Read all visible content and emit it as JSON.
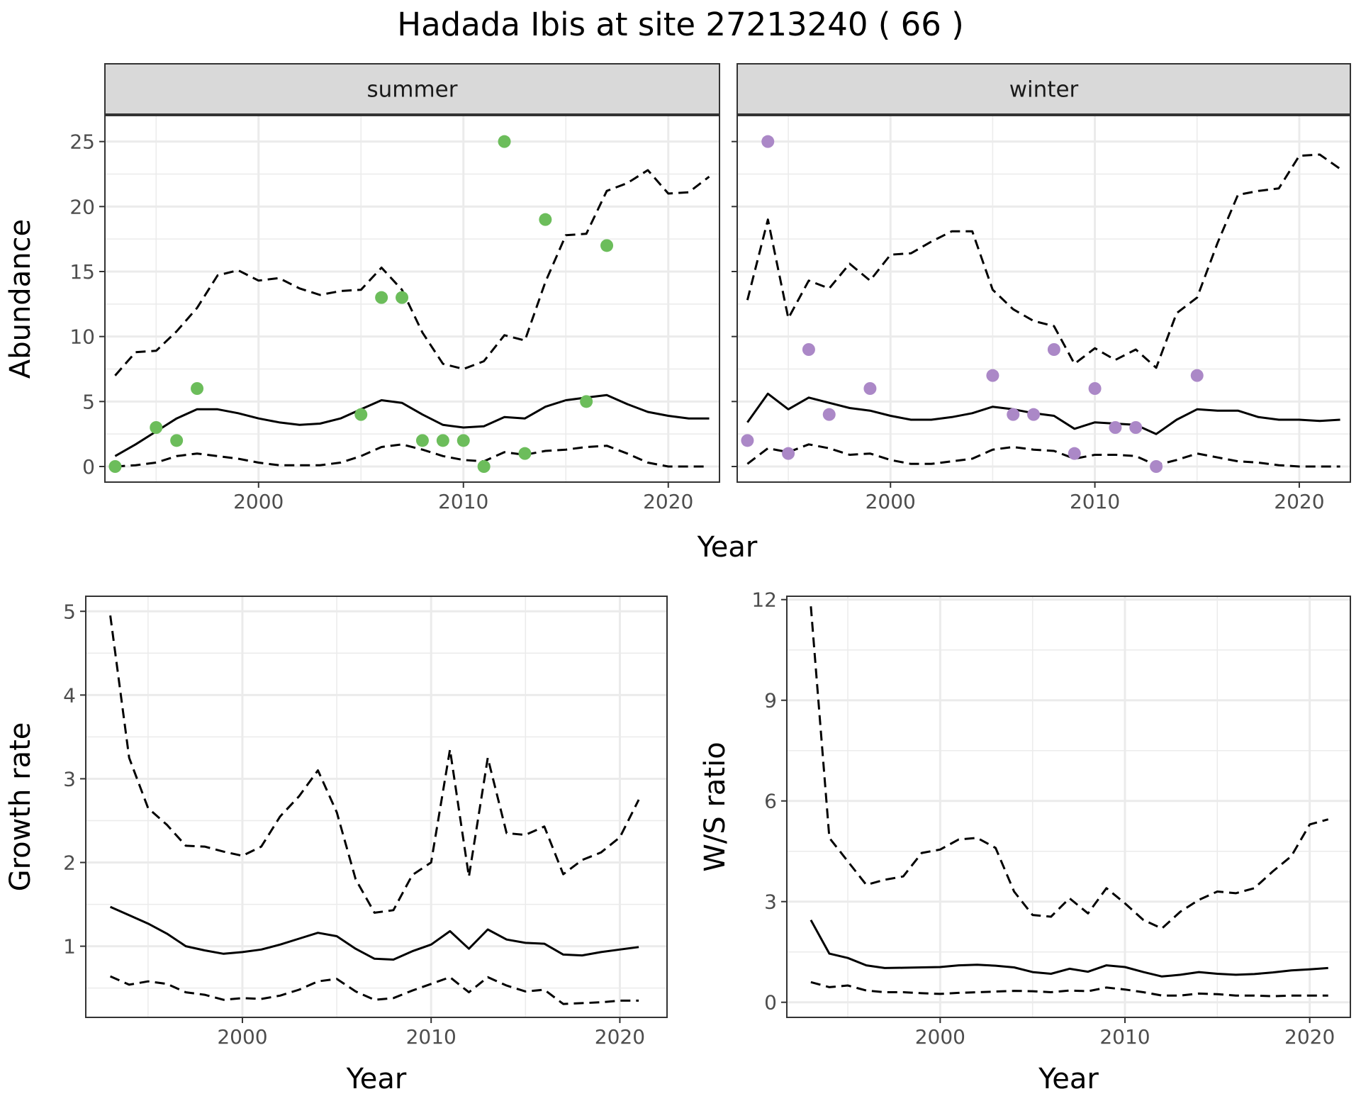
{
  "title": "Hadada Ibis at site 27213240 ( 66 )",
  "colors": {
    "summer_points": "#6cbd5b",
    "winter_points": "#ab88c7",
    "grid": "#ebebeb",
    "strip_fill": "#d9d9d9",
    "lines": "#000000"
  },
  "chart_data": [
    {
      "type": "line",
      "facet": "summer",
      "xlabel": "Year",
      "ylabel": "Abundance",
      "xlim": [
        1992.5,
        2022.5
      ],
      "ylim": [
        -1.2,
        27
      ],
      "xticks": [
        2000,
        2010,
        2020
      ],
      "yticks": [
        0,
        5,
        10,
        15,
        20,
        25
      ],
      "points": [
        [
          1993,
          0
        ],
        [
          1995,
          3
        ],
        [
          1996,
          2
        ],
        [
          1997,
          6
        ],
        [
          2005,
          4
        ],
        [
          2006,
          13
        ],
        [
          2007,
          13
        ],
        [
          2008,
          2
        ],
        [
          2009,
          2
        ],
        [
          2010,
          2
        ],
        [
          2011,
          0
        ],
        [
          2012,
          25
        ],
        [
          2013,
          1
        ],
        [
          2014,
          19
        ],
        [
          2016,
          5
        ],
        [
          2017,
          17
        ]
      ],
      "series": [
        {
          "style": "solid",
          "x": [
            1993,
            1994,
            1995,
            1996,
            1997,
            1998,
            1999,
            2000,
            2001,
            2002,
            2003,
            2004,
            2005,
            2006,
            2007,
            2008,
            2009,
            2010,
            2011,
            2012,
            2013,
            2014,
            2015,
            2016,
            2017,
            2018,
            2019,
            2020,
            2021,
            2022
          ],
          "values": [
            0.8,
            1.7,
            2.7,
            3.7,
            4.4,
            4.4,
            4.1,
            3.7,
            3.4,
            3.2,
            3.3,
            3.7,
            4.4,
            5.1,
            4.9,
            4.0,
            3.2,
            3.0,
            3.1,
            3.8,
            3.7,
            4.6,
            5.1,
            5.3,
            5.5,
            4.8,
            4.2,
            3.9,
            3.7,
            3.7
          ]
        },
        {
          "style": "dashed",
          "x": [
            1993,
            1994,
            1995,
            1996,
            1997,
            1998,
            1999,
            2000,
            2001,
            2002,
            2003,
            2004,
            2005,
            2006,
            2007,
            2008,
            2009,
            2010,
            2011,
            2012,
            2013,
            2014,
            2015,
            2016,
            2017,
            2018,
            2019,
            2020,
            2021,
            2022
          ],
          "values": [
            7.0,
            8.8,
            8.9,
            10.4,
            12.2,
            14.7,
            15.1,
            14.3,
            14.5,
            13.7,
            13.2,
            13.5,
            13.6,
            15.3,
            13.6,
            10.3,
            7.9,
            7.5,
            8.1,
            10.1,
            9.7,
            14.2,
            17.8,
            17.9,
            21.2,
            21.8,
            22.8,
            21.0,
            21.1,
            22.3
          ]
        },
        {
          "style": "dashed",
          "x": [
            1993,
            1994,
            1995,
            1996,
            1997,
            1998,
            1999,
            2000,
            2001,
            2002,
            2003,
            2004,
            2005,
            2006,
            2007,
            2008,
            2009,
            2010,
            2011,
            2012,
            2013,
            2014,
            2015,
            2016,
            2017,
            2018,
            2019,
            2020,
            2021,
            2022
          ],
          "values": [
            0.0,
            0.1,
            0.3,
            0.8,
            1.0,
            0.8,
            0.6,
            0.3,
            0.1,
            0.1,
            0.1,
            0.3,
            0.8,
            1.5,
            1.7,
            1.3,
            0.8,
            0.5,
            0.4,
            1.1,
            0.9,
            1.2,
            1.3,
            1.5,
            1.6,
            1.0,
            0.3,
            0.0,
            0.0,
            0.0
          ]
        }
      ]
    },
    {
      "type": "line",
      "facet": "winter",
      "xlabel": "Year",
      "ylabel": "Abundance",
      "xlim": [
        1992.5,
        2022.5
      ],
      "ylim": [
        -1.2,
        27
      ],
      "xticks": [
        2000,
        2010,
        2020
      ],
      "yticks": [
        0,
        5,
        10,
        15,
        20,
        25
      ],
      "points": [
        [
          1993,
          2
        ],
        [
          1994,
          25
        ],
        [
          1995,
          1
        ],
        [
          1996,
          9
        ],
        [
          1997,
          4
        ],
        [
          1999,
          6
        ],
        [
          2005,
          7
        ],
        [
          2006,
          4
        ],
        [
          2007,
          4
        ],
        [
          2008,
          9
        ],
        [
          2009,
          1
        ],
        [
          2010,
          6
        ],
        [
          2011,
          3
        ],
        [
          2012,
          3
        ],
        [
          2013,
          0
        ],
        [
          2015,
          7
        ]
      ],
      "series": [
        {
          "style": "solid",
          "x": [
            1993,
            1994,
            1995,
            1996,
            1997,
            1998,
            1999,
            2000,
            2001,
            2002,
            2003,
            2004,
            2005,
            2006,
            2007,
            2008,
            2009,
            2010,
            2011,
            2012,
            2013,
            2014,
            2015,
            2016,
            2017,
            2018,
            2019,
            2020,
            2021,
            2022
          ],
          "values": [
            3.4,
            5.6,
            4.4,
            5.3,
            4.9,
            4.5,
            4.3,
            3.9,
            3.6,
            3.6,
            3.8,
            4.1,
            4.6,
            4.4,
            4.1,
            3.9,
            2.9,
            3.4,
            3.3,
            3.2,
            2.5,
            3.6,
            4.4,
            4.3,
            4.3,
            3.8,
            3.6,
            3.6,
            3.5,
            3.6
          ]
        },
        {
          "style": "dashed",
          "x": [
            1993,
            1994,
            1995,
            1996,
            1997,
            1998,
            1999,
            2000,
            2001,
            2002,
            2003,
            2004,
            2005,
            2006,
            2007,
            2008,
            2009,
            2010,
            2011,
            2012,
            2013,
            2014,
            2015,
            2016,
            2017,
            2018,
            2019,
            2020,
            2021,
            2022
          ],
          "values": [
            12.8,
            19.0,
            11.4,
            14.3,
            13.7,
            15.6,
            14.3,
            16.3,
            16.4,
            17.3,
            18.1,
            18.1,
            13.6,
            12.1,
            11.2,
            10.8,
            7.9,
            9.1,
            8.2,
            9.0,
            7.6,
            11.8,
            13.0,
            17.2,
            20.9,
            21.2,
            21.4,
            23.9,
            24.0,
            22.9
          ]
        },
        {
          "style": "dashed",
          "x": [
            1993,
            1994,
            1995,
            1996,
            1997,
            1998,
            1999,
            2000,
            2001,
            2002,
            2003,
            2004,
            2005,
            2006,
            2007,
            2008,
            2009,
            2010,
            2011,
            2012,
            2013,
            2014,
            2015,
            2016,
            2017,
            2018,
            2019,
            2020,
            2021,
            2022
          ],
          "values": [
            0.2,
            1.4,
            1.1,
            1.7,
            1.4,
            0.9,
            1.0,
            0.5,
            0.2,
            0.2,
            0.4,
            0.6,
            1.3,
            1.5,
            1.3,
            1.2,
            0.6,
            0.9,
            0.9,
            0.8,
            0.1,
            0.5,
            1.0,
            0.7,
            0.4,
            0.3,
            0.1,
            0.0,
            0.0,
            0.0
          ]
        }
      ]
    },
    {
      "type": "line",
      "xlabel": "Year",
      "ylabel": "Growth rate",
      "xlim": [
        1991.7,
        2022.5
      ],
      "ylim": [
        0.15,
        5.18
      ],
      "xticks": [
        2000,
        2010,
        2020
      ],
      "yticks": [
        1,
        2,
        3,
        4,
        5
      ],
      "series": [
        {
          "style": "solid",
          "x": [
            1993,
            1994,
            1995,
            1996,
            1997,
            1998,
            1999,
            2000,
            2001,
            2002,
            2003,
            2004,
            2005,
            2006,
            2007,
            2008,
            2009,
            2010,
            2011,
            2012,
            2013,
            2014,
            2015,
            2016,
            2017,
            2018,
            2019,
            2020,
            2021
          ],
          "values": [
            1.47,
            1.37,
            1.27,
            1.15,
            1.0,
            0.95,
            0.91,
            0.93,
            0.96,
            1.02,
            1.09,
            1.16,
            1.12,
            0.97,
            0.85,
            0.84,
            0.94,
            1.02,
            1.18,
            0.97,
            1.2,
            1.08,
            1.04,
            1.03,
            0.9,
            0.89,
            0.93,
            0.96,
            0.99
          ]
        },
        {
          "style": "dashed",
          "x": [
            1993,
            1994,
            1995,
            1996,
            1997,
            1998,
            1999,
            2000,
            2001,
            2002,
            2003,
            2004,
            2005,
            2006,
            2007,
            2008,
            2009,
            2010,
            2011,
            2012,
            2013,
            2014,
            2015,
            2016,
            2017,
            2018,
            2019,
            2020,
            2021
          ],
          "values": [
            4.95,
            3.25,
            2.65,
            2.45,
            2.2,
            2.19,
            2.13,
            2.08,
            2.19,
            2.55,
            2.79,
            3.1,
            2.6,
            1.8,
            1.4,
            1.43,
            1.85,
            2.0,
            3.35,
            1.83,
            3.25,
            2.35,
            2.33,
            2.43,
            1.86,
            2.03,
            2.12,
            2.3,
            2.75
          ]
        },
        {
          "style": "dashed",
          "x": [
            1993,
            1994,
            1995,
            1996,
            1997,
            1998,
            1999,
            2000,
            2001,
            2002,
            2003,
            2004,
            2005,
            2006,
            2007,
            2008,
            2009,
            2010,
            2011,
            2012,
            2013,
            2014,
            2015,
            2016,
            2017,
            2018,
            2019,
            2020,
            2021
          ],
          "values": [
            0.64,
            0.54,
            0.58,
            0.55,
            0.45,
            0.42,
            0.36,
            0.38,
            0.37,
            0.41,
            0.48,
            0.58,
            0.61,
            0.46,
            0.36,
            0.38,
            0.47,
            0.55,
            0.63,
            0.45,
            0.63,
            0.53,
            0.46,
            0.48,
            0.31,
            0.32,
            0.33,
            0.35,
            0.35
          ]
        }
      ]
    },
    {
      "type": "line",
      "xlabel": "Year",
      "ylabel": "W/S ratio",
      "xlim": [
        1991.7,
        2022.2
      ],
      "ylim": [
        -0.45,
        12.1
      ],
      "xticks": [
        2000,
        2010,
        2020
      ],
      "yticks": [
        0,
        3,
        6,
        9,
        12
      ],
      "series": [
        {
          "style": "solid",
          "x": [
            1993,
            1994,
            1995,
            1996,
            1997,
            1998,
            1999,
            2000,
            2001,
            2002,
            2003,
            2004,
            2005,
            2006,
            2007,
            2008,
            2009,
            2010,
            2011,
            2012,
            2013,
            2014,
            2015,
            2016,
            2017,
            2018,
            2019,
            2020,
            2021
          ],
          "values": [
            2.45,
            1.45,
            1.32,
            1.1,
            1.02,
            1.03,
            1.04,
            1.05,
            1.1,
            1.12,
            1.09,
            1.04,
            0.9,
            0.85,
            1.0,
            0.91,
            1.1,
            1.05,
            0.9,
            0.77,
            0.82,
            0.9,
            0.85,
            0.82,
            0.84,
            0.89,
            0.95,
            0.98,
            1.02
          ]
        },
        {
          "style": "dashed",
          "x": [
            1993,
            1994,
            1995,
            1996,
            1997,
            1998,
            1999,
            2000,
            2001,
            2002,
            2003,
            2004,
            2005,
            2006,
            2007,
            2008,
            2009,
            2010,
            2011,
            2012,
            2013,
            2014,
            2015,
            2016,
            2017,
            2018,
            2019,
            2020,
            2021
          ],
          "values": [
            11.8,
            4.9,
            4.2,
            3.5,
            3.65,
            3.75,
            4.45,
            4.55,
            4.85,
            4.9,
            4.6,
            3.3,
            2.6,
            2.55,
            3.1,
            2.65,
            3.4,
            2.95,
            2.45,
            2.2,
            2.7,
            3.05,
            3.3,
            3.25,
            3.4,
            3.9,
            4.35,
            5.3,
            5.45
          ]
        },
        {
          "style": "dashed",
          "x": [
            1993,
            1994,
            1995,
            1996,
            1997,
            1998,
            1999,
            2000,
            2001,
            2002,
            2003,
            2004,
            2005,
            2006,
            2007,
            2008,
            2009,
            2010,
            2011,
            2012,
            2013,
            2014,
            2015,
            2016,
            2017,
            2018,
            2019,
            2020,
            2021
          ],
          "values": [
            0.6,
            0.45,
            0.5,
            0.35,
            0.3,
            0.3,
            0.27,
            0.25,
            0.28,
            0.3,
            0.32,
            0.34,
            0.33,
            0.3,
            0.35,
            0.33,
            0.44,
            0.38,
            0.3,
            0.2,
            0.2,
            0.26,
            0.24,
            0.2,
            0.2,
            0.18,
            0.2,
            0.2,
            0.2
          ]
        }
      ]
    }
  ]
}
